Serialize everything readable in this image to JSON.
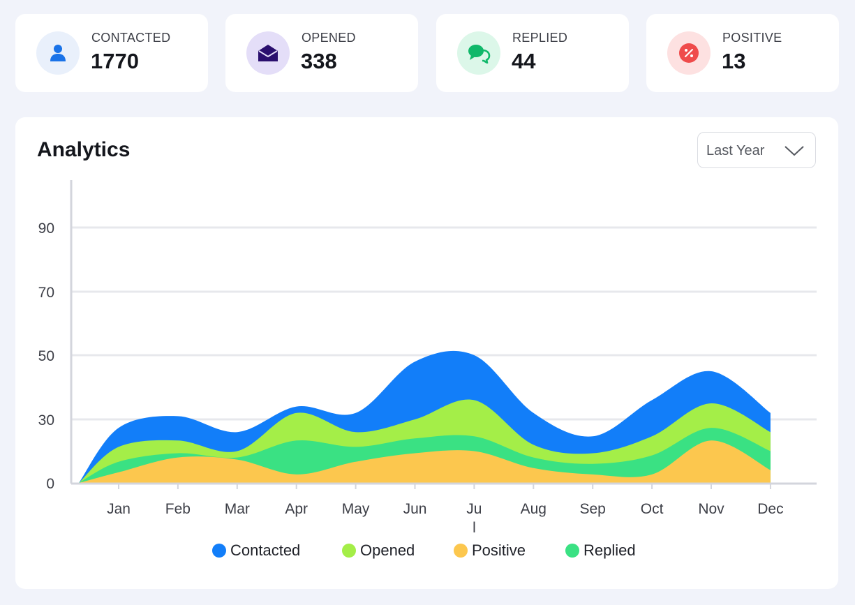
{
  "stats": [
    {
      "label": "CONTACTED",
      "value": "1770",
      "icon": "user-icon",
      "icon_color": "#1a73e8",
      "icon_bg": "#e9f0fb"
    },
    {
      "label": "OPENED",
      "value": "338",
      "icon": "envelope-icon",
      "icon_color": "#2a0f6e",
      "icon_bg": "#e4def8"
    },
    {
      "label": "REPLIED",
      "value": "44",
      "icon": "chat-bubbles-icon",
      "icon_color": "#10b86a",
      "icon_bg": "#dcf7e9"
    },
    {
      "label": "POSITIVE",
      "value": "13",
      "icon": "percent-badge-icon",
      "icon_color": "#ef4b4b",
      "icon_bg": "#fde1e1"
    }
  ],
  "analytics": {
    "title": "Analytics",
    "range_selector": {
      "selected": "Last Year"
    }
  },
  "chart_data": {
    "type": "area",
    "stacked": true,
    "categories": [
      "Jan",
      "Feb",
      "Mar",
      "Apr",
      "May",
      "Jun",
      "Jul",
      "Aug",
      "Sep",
      "Oct",
      "Nov",
      "Dec"
    ],
    "x_tick_labels": [
      "Jan",
      "Feb",
      "Mar",
      "Apr",
      "May",
      "Jun",
      "Ju\nl",
      "Aug",
      "Sep",
      "Oct",
      "Nov",
      "Dec"
    ],
    "y_ticks": [
      0,
      30,
      50,
      70,
      90
    ],
    "grid": "horizontal",
    "legend_position": "bottom-center",
    "series": [
      {
        "name": "Positive",
        "color": "#fcc74e",
        "values": [
          5,
          12,
          11,
          4,
          10,
          14,
          15,
          7,
          4,
          4,
          20,
          6
        ]
      },
      {
        "name": "Replied",
        "color": "#3ae183",
        "values": [
          10,
          14,
          12,
          20,
          17,
          21,
          22,
          12,
          9,
          13,
          26,
          15
        ]
      },
      {
        "name": "Opened",
        "color": "#a4ee48",
        "values": [
          17,
          20,
          15,
          32,
          24,
          30,
          36,
          18,
          14,
          22,
          35,
          24
        ]
      },
      {
        "name": "Contacted",
        "color": "#127ef9",
        "values": [
          26,
          31,
          24,
          34,
          32,
          48,
          50,
          32,
          22,
          36,
          45,
          32
        ]
      }
    ],
    "legend": [
      {
        "name": "Contacted",
        "color": "#127ef9"
      },
      {
        "name": "Opened",
        "color": "#a4ee48"
      },
      {
        "name": "Positive",
        "color": "#fcc74e"
      },
      {
        "name": "Replied",
        "color": "#3ae183"
      }
    ]
  }
}
